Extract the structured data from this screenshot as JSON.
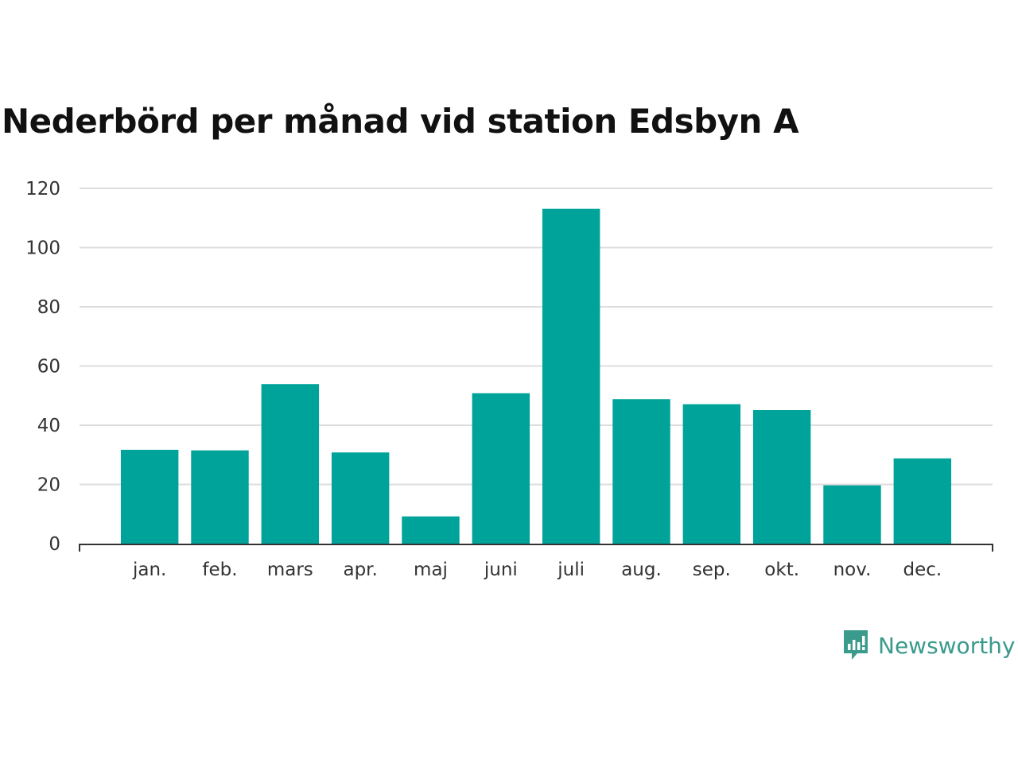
{
  "chart_data": {
    "type": "bar",
    "title": "Nederbörd per månad vid station Edsbyn A",
    "categories": [
      "jan.",
      "feb.",
      "mars",
      "apr.",
      "maj",
      "juni",
      "juli",
      "aug.",
      "sep.",
      "okt.",
      "nov.",
      "dec."
    ],
    "values": [
      31.7,
      31.5,
      53.9,
      30.8,
      9.2,
      50.8,
      113.1,
      48.8,
      47.1,
      45.1,
      19.7,
      28.8
    ],
    "yticks": [
      0,
      20,
      40,
      60,
      80,
      100,
      120
    ],
    "ylim": [
      0,
      120
    ],
    "grid": true,
    "bar_color": "#00a39a"
  },
  "brand": {
    "name": "Newsworthy",
    "icon": "newsworthy-logo-icon",
    "color": "#3a9a8c"
  }
}
